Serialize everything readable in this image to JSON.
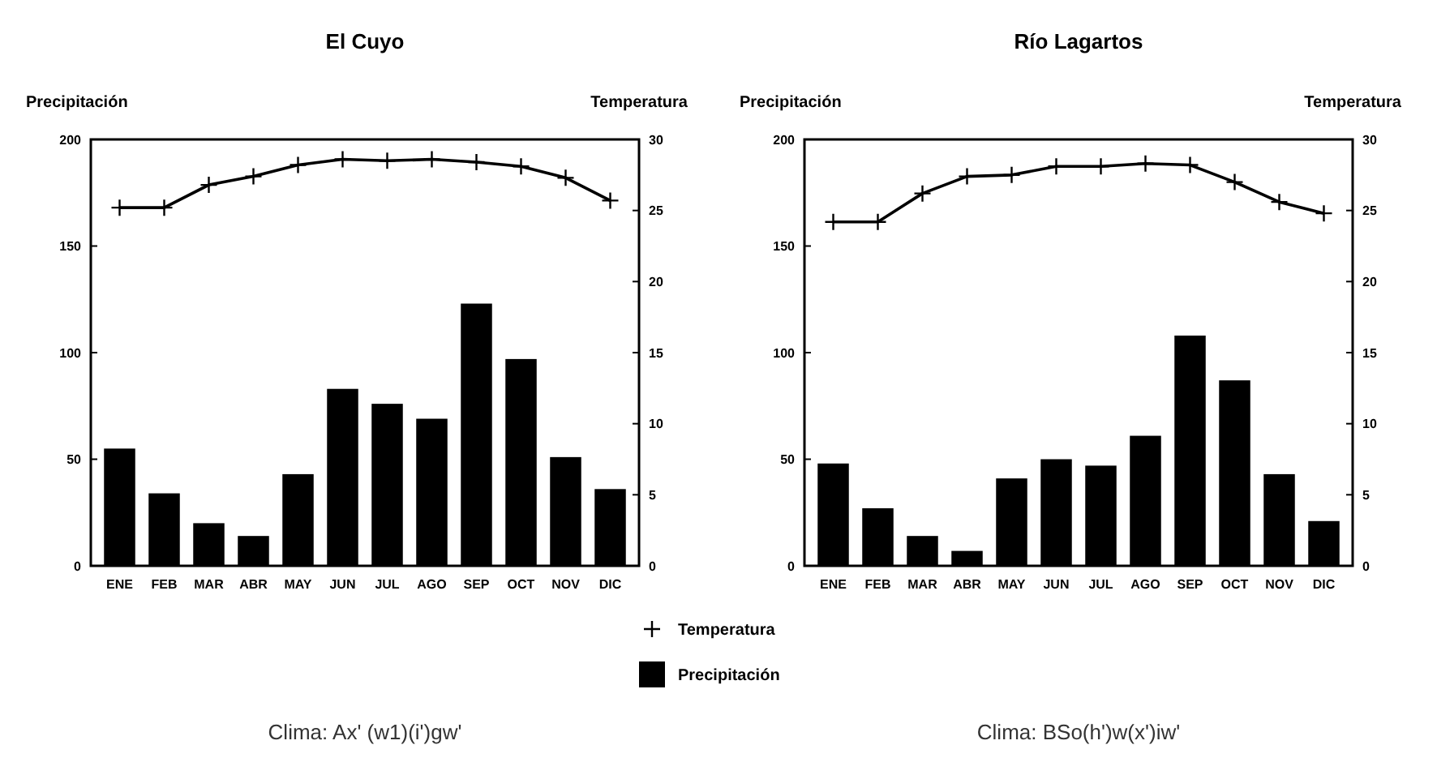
{
  "chart_data": [
    {
      "type": "bar",
      "title": "El Cuyo",
      "ylabel": "Precipitación",
      "y2label": "Temperatura",
      "categories": [
        "ENE",
        "FEB",
        "MAR",
        "ABR",
        "MAY",
        "JUN",
        "JUL",
        "AGO",
        "SEP",
        "OCT",
        "NOV",
        "DIC"
      ],
      "series": [
        {
          "name": "Precipitación",
          "color": "#000000",
          "values": [
            55,
            34,
            20,
            14,
            43,
            83,
            76,
            69,
            123,
            97,
            51,
            36
          ]
        },
        {
          "name": "Temperatura",
          "type": "line",
          "axis": "y2",
          "color": "#000000",
          "marker": "cross",
          "values": [
            25.2,
            25.2,
            26.8,
            27.4,
            28.2,
            28.6,
            28.5,
            28.6,
            28.4,
            28.1,
            27.3,
            25.7
          ]
        }
      ],
      "ylim": [
        0,
        200
      ],
      "yticks": [
        0,
        50,
        100,
        150,
        200
      ],
      "y2lim": [
        0,
        30
      ],
      "y2ticks": [
        0,
        5,
        10,
        15,
        20,
        25,
        30
      ],
      "grid": false,
      "legend": "bottom right",
      "annotations": [
        "Clima: Ax' (w1)(i')gw'"
      ]
    },
    {
      "type": "bar",
      "title": "Río Lagartos",
      "ylabel": "Precipitación",
      "y2label": "Temperatura",
      "categories": [
        "ENE",
        "FEB",
        "MAR",
        "ABR",
        "MAY",
        "JUN",
        "JUL",
        "AGO",
        "SEP",
        "OCT",
        "NOV",
        "DIC"
      ],
      "series": [
        {
          "color": "#000000",
          "values": [
            48,
            27,
            14,
            7,
            41,
            50,
            47,
            61,
            108,
            87,
            43,
            21
          ]
        },
        {
          "type": "line",
          "axis": "y2",
          "color": "#000000",
          "marker": "cross",
          "values": [
            24.2,
            24.2,
            26.2,
            27.4,
            27.5,
            28.1,
            28.1,
            28.3,
            28.2,
            27.0,
            25.6,
            24.8
          ]
        }
      ],
      "ylim": [
        0,
        200
      ],
      "yticks": [
        0,
        50,
        100,
        150,
        200
      ],
      "y2lim": [
        0,
        30
      ],
      "y2ticks": [
        0,
        5,
        10,
        15,
        20,
        25,
        30
      ],
      "grid": false,
      "legend": false,
      "annotations": [
        "Clima: BSo(h')w(x')iw'"
      ]
    }
  ]
}
